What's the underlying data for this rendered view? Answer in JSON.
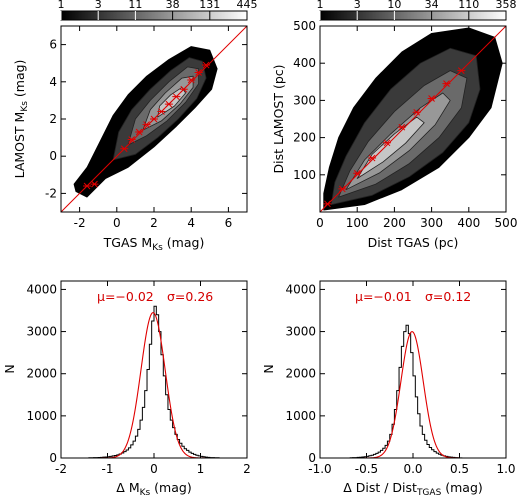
{
  "chart_data": [
    {
      "type": "heatmap",
      "xlabel": "TGAS M",
      "xlabel_sub": "Ks",
      "xlabel_unit": " (mag)",
      "ylabel": "LAMOST M",
      "ylabel_sub": "Ks",
      "ylabel_unit": " (mag)",
      "xlim": [
        -3,
        7
      ],
      "ylim": [
        -3,
        7
      ],
      "xticks": [
        "-2",
        "0",
        "2",
        "4",
        "6"
      ],
      "yticks": [
        "-2",
        "0",
        "2",
        "4",
        "6"
      ],
      "colorbar_ticks": [
        "1",
        "3",
        "11",
        "38",
        "131",
        "445"
      ],
      "one_to_one_line": true,
      "binned_means": [
        {
          "x": -1.6,
          "y": -1.6
        },
        {
          "x": -1.2,
          "y": -1.5
        },
        {
          "x": 0.4,
          "y": 0.4
        },
        {
          "x": 0.8,
          "y": 0.9
        },
        {
          "x": 1.2,
          "y": 1.3
        },
        {
          "x": 1.6,
          "y": 1.7
        },
        {
          "x": 2.0,
          "y": 2.0
        },
        {
          "x": 2.4,
          "y": 2.4
        },
        {
          "x": 2.8,
          "y": 2.8
        },
        {
          "x": 3.2,
          "y": 3.2
        },
        {
          "x": 3.6,
          "y": 3.6
        },
        {
          "x": 4.0,
          "y": 4.1
        },
        {
          "x": 4.4,
          "y": 4.5
        },
        {
          "x": 4.8,
          "y": 4.9
        }
      ],
      "density_contours": [
        {
          "level": 1,
          "points": [
            [
              -2.2,
              -1.9
            ],
            [
              -1.6,
              -2.2
            ],
            [
              -0.6,
              -1.2
            ],
            [
              0.6,
              -0.6
            ],
            [
              2.0,
              0.5
            ],
            [
              3.2,
              1.6
            ],
            [
              4.2,
              2.6
            ],
            [
              5.1,
              3.6
            ],
            [
              5.4,
              4.7
            ],
            [
              5.0,
              5.7
            ],
            [
              4.0,
              5.9
            ],
            [
              2.8,
              5.2
            ],
            [
              1.6,
              4.3
            ],
            [
              0.6,
              3.3
            ],
            [
              -0.2,
              2.2
            ],
            [
              -0.9,
              0.8
            ],
            [
              -1.6,
              -0.6
            ],
            [
              -2.3,
              -1.5
            ]
          ]
        },
        {
          "level": 3,
          "points": [
            [
              -0.2,
              -0.2
            ],
            [
              1.0,
              0.1
            ],
            [
              2.2,
              1.0
            ],
            [
              3.3,
              2.0
            ],
            [
              4.3,
              3.1
            ],
            [
              4.8,
              4.2
            ],
            [
              4.6,
              5.1
            ],
            [
              3.9,
              5.3
            ],
            [
              2.9,
              4.6
            ],
            [
              1.8,
              3.6
            ],
            [
              0.8,
              2.5
            ],
            [
              0.1,
              1.3
            ]
          ]
        },
        {
          "level": 11,
          "points": [
            [
              0.6,
              0.6
            ],
            [
              1.6,
              1.1
            ],
            [
              2.7,
              1.9
            ],
            [
              3.7,
              2.9
            ],
            [
              4.4,
              3.9
            ],
            [
              4.4,
              4.7
            ],
            [
              3.8,
              4.8
            ],
            [
              2.8,
              4.0
            ],
            [
              1.8,
              3.0
            ],
            [
              1.0,
              2.0
            ]
          ]
        },
        {
          "level": 38,
          "points": [
            [
              1.4,
              1.4
            ],
            [
              2.4,
              1.9
            ],
            [
              3.4,
              2.8
            ],
            [
              4.1,
              3.7
            ],
            [
              4.1,
              4.3
            ],
            [
              3.5,
              4.2
            ],
            [
              2.6,
              3.4
            ],
            [
              1.8,
              2.5
            ]
          ]
        },
        {
          "level": 131,
          "points": [
            [
              2.2,
              2.1
            ],
            [
              3.1,
              2.7
            ],
            [
              3.7,
              3.4
            ],
            [
              3.5,
              3.7
            ],
            [
              2.9,
              3.3
            ],
            [
              2.3,
              2.7
            ]
          ]
        }
      ]
    },
    {
      "type": "heatmap",
      "xlabel": "Dist TGAS (pc)",
      "ylabel": "Dist LAMOST (pc)",
      "xlim": [
        0,
        500
      ],
      "ylim": [
        0,
        500
      ],
      "xticks": [
        "0",
        "100",
        "200",
        "300",
        "400",
        "500"
      ],
      "yticks": [
        "100",
        "200",
        "300",
        "400",
        "500"
      ],
      "colorbar_ticks": [
        "1",
        "3",
        "10",
        "34",
        "110",
        "358"
      ],
      "one_to_one_line": true,
      "binned_means": [
        {
          "x": 20,
          "y": 22
        },
        {
          "x": 60,
          "y": 62
        },
        {
          "x": 100,
          "y": 104
        },
        {
          "x": 140,
          "y": 145
        },
        {
          "x": 180,
          "y": 186
        },
        {
          "x": 220,
          "y": 228
        },
        {
          "x": 260,
          "y": 268
        },
        {
          "x": 300,
          "y": 305
        },
        {
          "x": 340,
          "y": 345
        },
        {
          "x": 380,
          "y": 380
        }
      ],
      "density_contours": [
        {
          "level": 1,
          "points": [
            [
              10,
              5
            ],
            [
              120,
              20
            ],
            [
              220,
              60
            ],
            [
              320,
              120
            ],
            [
              400,
              200
            ],
            [
              460,
              280
            ],
            [
              490,
              400
            ],
            [
              470,
              470
            ],
            [
              400,
              495
            ],
            [
              300,
              480
            ],
            [
              220,
              430
            ],
            [
              150,
              360
            ],
            [
              90,
              280
            ],
            [
              50,
              200
            ],
            [
              25,
              120
            ],
            [
              10,
              50
            ]
          ]
        },
        {
          "level": 3,
          "points": [
            [
              30,
              20
            ],
            [
              140,
              45
            ],
            [
              240,
              95
            ],
            [
              330,
              160
            ],
            [
              400,
              240
            ],
            [
              430,
              330
            ],
            [
              420,
              420
            ],
            [
              350,
              440
            ],
            [
              270,
              400
            ],
            [
              190,
              330
            ],
            [
              120,
              240
            ],
            [
              70,
              150
            ],
            [
              40,
              80
            ]
          ]
        },
        {
          "level": 10,
          "points": [
            [
              50,
              40
            ],
            [
              150,
              75
            ],
            [
              240,
              130
            ],
            [
              320,
              200
            ],
            [
              380,
              280
            ],
            [
              395,
              360
            ],
            [
              350,
              380
            ],
            [
              280,
              340
            ],
            [
              200,
              270
            ],
            [
              130,
              190
            ],
            [
              80,
              110
            ]
          ]
        },
        {
          "level": 34,
          "points": [
            [
              70,
              60
            ],
            [
              160,
              105
            ],
            [
              240,
              165
            ],
            [
              310,
              235
            ],
            [
              350,
              300
            ],
            [
              330,
              320
            ],
            [
              270,
              280
            ],
            [
              190,
              210
            ],
            [
              120,
              140
            ]
          ]
        },
        {
          "level": 110,
          "points": [
            [
              100,
              90
            ],
            [
              170,
              135
            ],
            [
              230,
              185
            ],
            [
              280,
              240
            ],
            [
              260,
              255
            ],
            [
              200,
              210
            ],
            [
              140,
              155
            ]
          ]
        }
      ]
    },
    {
      "type": "histogram",
      "xlabel": "Δ M",
      "xlabel_sub": "Ks",
      "xlabel_unit": " (mag)",
      "ylabel": "N",
      "xlim": [
        -2,
        2
      ],
      "ylim": [
        0,
        4200
      ],
      "xticks": [
        "-2",
        "-1",
        "0",
        "1",
        "2"
      ],
      "yticks": [
        "0",
        "1000",
        "2000",
        "3000",
        "4000"
      ],
      "annotation_mu": "μ=−0.02",
      "annotation_sigma": "σ=0.26",
      "gaussian_fit": {
        "mu": -0.02,
        "sigma": 0.26,
        "amplitude": 3450
      },
      "bin_width": 0.05,
      "bins_start": -2.0,
      "counts": [
        0,
        0,
        0,
        0,
        0,
        0,
        0,
        0,
        0,
        0,
        0,
        0,
        5,
        5,
        8,
        10,
        12,
        15,
        20,
        25,
        30,
        40,
        50,
        60,
        75,
        95,
        120,
        150,
        190,
        240,
        310,
        400,
        520,
        680,
        900,
        1200,
        1600,
        2100,
        2700,
        3250,
        3600,
        3400,
        3000,
        2450,
        1950,
        1500,
        1150,
        900,
        720,
        560,
        440,
        350,
        280,
        220,
        180,
        140,
        110,
        85,
        65,
        50,
        40,
        30,
        22,
        15,
        10,
        8,
        5,
        5,
        0,
        0,
        0,
        0,
        0,
        0,
        0,
        0,
        0,
        0,
        0,
        0
      ]
    },
    {
      "type": "histogram",
      "xlabel": "Δ Dist / Dist",
      "xlabel_sub": "TGAS",
      "xlabel_unit": " (mag)",
      "ylabel": "N",
      "xlim": [
        -1,
        1
      ],
      "ylim": [
        0,
        4200
      ],
      "xticks": [
        "-1.0",
        "-0.5",
        "0.0",
        "0.5",
        "1.0"
      ],
      "yticks": [
        "0",
        "1000",
        "2000",
        "3000",
        "4000"
      ],
      "annotation_mu": "μ=−0.01",
      "annotation_sigma": "σ=0.12",
      "gaussian_fit": {
        "mu": -0.01,
        "sigma": 0.12,
        "amplitude": 3000
      },
      "bin_width": 0.025,
      "bins_start": -1.0,
      "counts": [
        0,
        0,
        0,
        0,
        0,
        0,
        0,
        0,
        0,
        0,
        0,
        0,
        0,
        5,
        8,
        10,
        14,
        18,
        24,
        30,
        40,
        52,
        66,
        85,
        110,
        140,
        180,
        230,
        300,
        400,
        560,
        800,
        1150,
        1600,
        2150,
        2650,
        3000,
        3150,
        2950,
        2500,
        1950,
        1450,
        1050,
        760,
        560,
        420,
        320,
        250,
        195,
        150,
        115,
        88,
        66,
        50,
        38,
        28,
        20,
        14,
        10,
        6,
        4,
        0,
        0,
        0,
        0,
        0,
        0,
        0,
        0,
        0,
        0,
        0,
        0,
        0,
        0,
        0,
        0,
        0,
        0,
        0
      ]
    }
  ]
}
